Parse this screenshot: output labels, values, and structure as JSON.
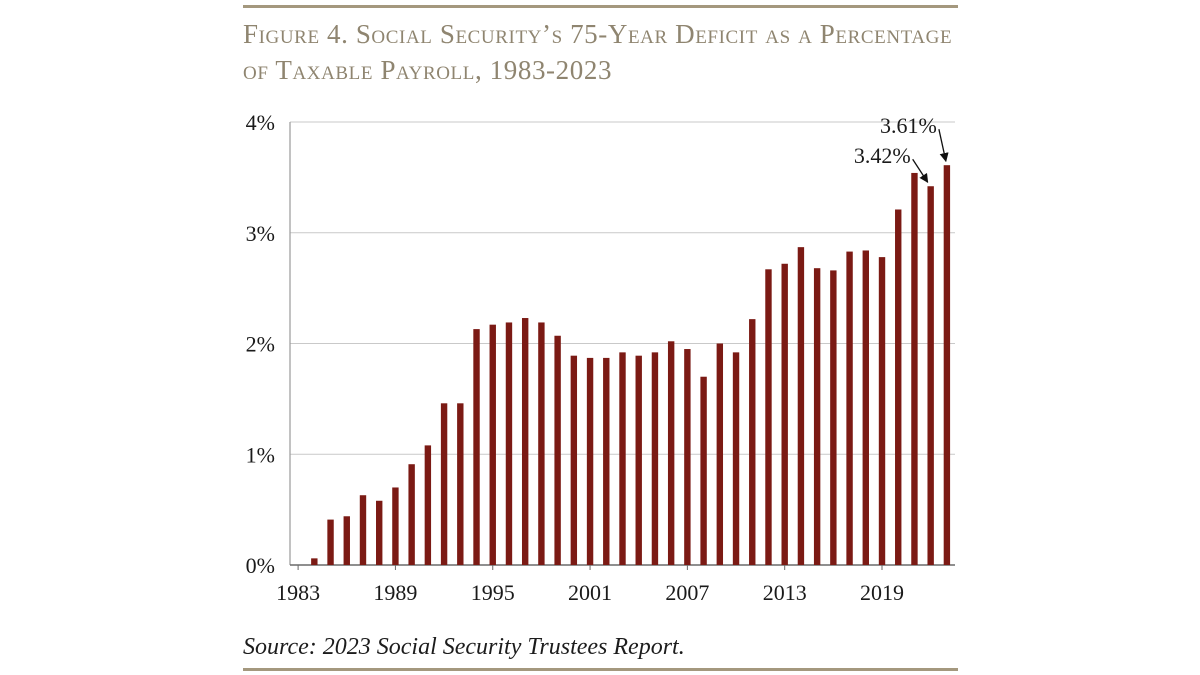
{
  "figure": {
    "title": "Figure 4. Social Security’s 75-Year Deficit as a Percentage of Taxable Payroll, 1983-2023",
    "source": "Source: 2023 Social Security Trustees Report."
  },
  "chart_data": {
    "type": "bar",
    "title": "Figure 4. Social Security’s 75-Year Deficit as a Percentage of Taxable Payroll, 1983-2023",
    "xlabel": "",
    "ylabel": "",
    "categories": [
      "1983",
      "1984",
      "1985",
      "1986",
      "1987",
      "1988",
      "1989",
      "1990",
      "1991",
      "1992",
      "1993",
      "1994",
      "1995",
      "1996",
      "1997",
      "1998",
      "1999",
      "2000",
      "2001",
      "2002",
      "2003",
      "2004",
      "2005",
      "2006",
      "2007",
      "2008",
      "2009",
      "2010",
      "2011",
      "2012",
      "2013",
      "2014",
      "2015",
      "2016",
      "2017",
      "2018",
      "2019",
      "2020",
      "2021",
      "2022",
      "2023"
    ],
    "values": [
      0.0,
      0.06,
      0.41,
      0.44,
      0.63,
      0.58,
      0.7,
      0.91,
      1.08,
      1.46,
      1.46,
      2.13,
      2.17,
      2.19,
      2.23,
      2.19,
      2.07,
      1.89,
      1.87,
      1.87,
      1.92,
      1.89,
      1.92,
      2.02,
      1.95,
      1.7,
      2.0,
      1.92,
      2.22,
      2.67,
      2.72,
      2.87,
      2.68,
      2.66,
      2.83,
      2.84,
      2.78,
      3.21,
      3.54,
      3.42,
      3.61
    ],
    "value_format": "percent",
    "ylim": [
      0,
      4
    ],
    "yticks": [
      0,
      1,
      2,
      3,
      4
    ],
    "ytick_labels": [
      "0%",
      "1%",
      "2%",
      "3%",
      "4%"
    ],
    "xtick_labels": [
      "1983",
      "1989",
      "1995",
      "2001",
      "2007",
      "2013",
      "2019"
    ],
    "grid": true,
    "legend": "none",
    "bar_color": "#7b1a14",
    "annotations": [
      {
        "category": "2022",
        "text": "3.42%"
      },
      {
        "category": "2023",
        "text": "3.61%"
      }
    ]
  }
}
